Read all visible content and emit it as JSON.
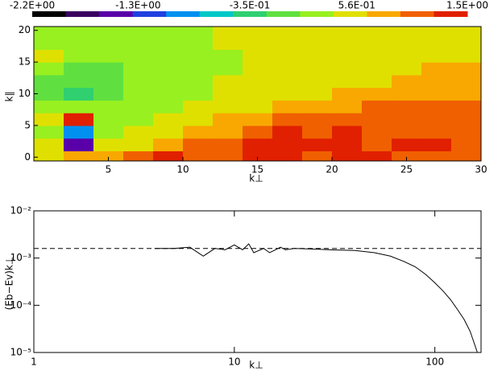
{
  "chart_data": [
    {
      "type": "heatmap",
      "xlabel": "k⊥",
      "ylabel": "k∥",
      "x": [
        1,
        3,
        5,
        7,
        9,
        11,
        13,
        15,
        17,
        19,
        21,
        23,
        25,
        27,
        29
      ],
      "y": [
        0,
        2,
        4,
        6,
        8,
        10,
        12,
        14,
        16,
        18,
        20
      ],
      "z": [
        [
          0.6,
          0.9,
          0.85,
          1.0,
          1.35,
          1.2,
          1.1,
          1.35,
          1.3,
          1.2,
          1.3,
          1.25,
          1.2,
          1.2,
          1.1
        ],
        [
          0.4,
          -1.6,
          0.4,
          0.6,
          0.85,
          1.0,
          1.1,
          1.3,
          1.35,
          1.25,
          1.3,
          1.2,
          1.25,
          1.3,
          1.15
        ],
        [
          0.3,
          -0.8,
          0.3,
          0.45,
          0.55,
          0.7,
          0.85,
          1.05,
          1.3,
          1.2,
          1.25,
          1.1,
          1.15,
          1.2,
          1.2
        ],
        [
          0.5,
          1.3,
          0.3,
          0.35,
          0.45,
          0.55,
          0.7,
          0.9,
          1.1,
          1.0,
          1.2,
          1.05,
          1.1,
          1.0,
          1.15
        ],
        [
          0.2,
          0.1,
          0.2,
          0.3,
          0.35,
          0.4,
          0.5,
          0.6,
          0.75,
          0.8,
          0.9,
          0.95,
          1.0,
          1.05,
          1.1
        ],
        [
          -0.1,
          -0.3,
          0.05,
          0.15,
          0.25,
          0.35,
          0.4,
          0.45,
          0.5,
          0.6,
          0.7,
          0.75,
          0.85,
          0.9,
          0.9
        ],
        [
          0.0,
          -0.2,
          0.0,
          0.1,
          0.2,
          0.3,
          0.4,
          0.4,
          0.45,
          0.5,
          0.55,
          0.6,
          0.75,
          0.8,
          0.85
        ],
        [
          0.1,
          0.0,
          0.05,
          0.1,
          0.2,
          0.3,
          0.35,
          0.4,
          0.45,
          0.45,
          0.5,
          0.55,
          0.6,
          0.7,
          0.7
        ],
        [
          0.4,
          0.15,
          0.1,
          0.2,
          0.25,
          0.3,
          0.35,
          0.4,
          0.4,
          0.45,
          0.45,
          0.5,
          0.55,
          0.6,
          0.55
        ],
        [
          0.2,
          0.2,
          0.2,
          0.25,
          0.3,
          0.35,
          0.4,
          0.4,
          0.4,
          0.45,
          0.45,
          0.45,
          0.5,
          0.55,
          0.5
        ],
        [
          0.2,
          0.2,
          0.25,
          0.3,
          0.35,
          0.35,
          0.4,
          0.4,
          0.4,
          0.4,
          0.45,
          0.45,
          0.45,
          0.5,
          0.5
        ]
      ],
      "zlim": [
        -2.2,
        1.5
      ],
      "zticks": [
        {
          "value": -2.2,
          "label": "-2.2E+00"
        },
        {
          "value": -1.3,
          "label": "-1.3E+00"
        },
        {
          "value": -0.35,
          "label": "-3.5E-01"
        },
        {
          "value": 0.56,
          "label": "5.6E-01"
        },
        {
          "value": 1.5,
          "label": "1.5E+00"
        }
      ],
      "colors": [
        "#000000",
        "#3a0060",
        "#5a00a8",
        "#2040e0",
        "#0090f0",
        "#00c8c8",
        "#30d070",
        "#60e040",
        "#98f020",
        "#e0e000",
        "#f8a800",
        "#f06000",
        "#e02000"
      ],
      "xlim": [
        0,
        30
      ],
      "xticks": [
        5,
        10,
        15,
        20,
        25,
        30
      ],
      "ylim": [
        -0.6,
        20.6
      ],
      "yticks": [
        0,
        5,
        10,
        15,
        20
      ]
    },
    {
      "type": "line",
      "log_x": true,
      "log_y": true,
      "xlabel": "k⊥",
      "ylabel": "(Eb−Ev)k⊥",
      "x": [
        4,
        5,
        6,
        7,
        8,
        9,
        10,
        11,
        11.8,
        12.5,
        14,
        15,
        17,
        18,
        20,
        25,
        30,
        40,
        50,
        60,
        70,
        80,
        90,
        100,
        110,
        120,
        130,
        140,
        150,
        163
      ],
      "series": [
        {
          "color": "#000000",
          "values": [
            0.0016,
            0.0016,
            0.0017,
            0.0011,
            0.0016,
            0.0015,
            0.0019,
            0.0015,
            0.002,
            0.0013,
            0.0016,
            0.0013,
            0.0017,
            0.0015,
            0.0016,
            0.00155,
            0.0015,
            0.00145,
            0.0013,
            0.0011,
            0.00085,
            0.00065,
            0.00045,
            0.0003,
            0.0002,
            0.00013,
            8e-05,
            5e-05,
            2.8e-05,
            1e-05
          ]
        }
      ],
      "reference": 0.0016,
      "xlim": [
        1,
        170
      ],
      "xticks": [
        1,
        10,
        100
      ],
      "ylim": [
        1e-05,
        0.01
      ],
      "yticks": [
        {
          "value": 1e-05,
          "label": "10⁻⁵"
        },
        {
          "value": 0.0001,
          "label": "10⁻⁴"
        },
        {
          "value": 0.001,
          "label": "10⁻³"
        },
        {
          "value": 0.01,
          "label": "10⁻²"
        }
      ]
    }
  ]
}
